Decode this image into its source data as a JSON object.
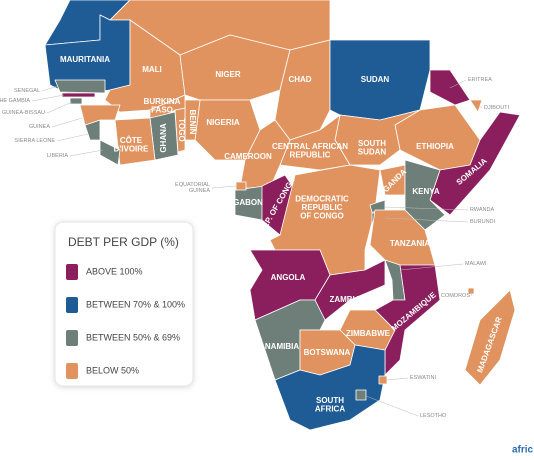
{
  "legend": {
    "title": "DEBT PER GDP (%)",
    "items": [
      {
        "label": "ABOVE 100%",
        "color": "#8b1f5e"
      },
      {
        "label": "BETWEEN 70% & 100%",
        "color": "#1f5b95"
      },
      {
        "label": "BETWEEN 50% & 69%",
        "color": "#6e7f79"
      },
      {
        "label": "BELOW 50%",
        "color": "#e0935f"
      }
    ]
  },
  "countries": [
    {
      "name": [
        "MAURITANIA"
      ],
      "category": 1
    },
    {
      "name": [
        "MALI"
      ],
      "category": 3
    },
    {
      "name": [
        "NIGER"
      ],
      "category": 3
    },
    {
      "name": [
        "CHAD"
      ],
      "category": 3
    },
    {
      "name": [
        "SUDAN"
      ],
      "category": 1
    },
    {
      "name": [
        "ERITREA"
      ],
      "category": 0
    },
    {
      "name": [
        "DJIBOUTI"
      ],
      "category": 3
    },
    {
      "name": [
        "ETHIOPIA"
      ],
      "category": 3
    },
    {
      "name": [
        "SOMALIA"
      ],
      "category": 0
    },
    {
      "name": [
        "SOUTH",
        "SUDAN"
      ],
      "category": 3
    },
    {
      "name": [
        "CENTRAL AFRICAN",
        "REPUBLIC"
      ],
      "category": 3
    },
    {
      "name": [
        "NIGERIA"
      ],
      "category": 3
    },
    {
      "name": [
        "CAMEROON"
      ],
      "category": 3
    },
    {
      "name": [
        "BENIN"
      ],
      "category": 3
    },
    {
      "name": [
        "TOGO"
      ],
      "category": 3
    },
    {
      "name": [
        "BURKINA",
        "FASO"
      ],
      "category": 3
    },
    {
      "name": [
        "GHANA"
      ],
      "category": 2
    },
    {
      "name": [
        "CÔTE",
        "D'IVOIRE"
      ],
      "category": 3
    },
    {
      "name": [
        "LIBERIA"
      ],
      "category": 2
    },
    {
      "name": [
        "SIERRA LEONE"
      ],
      "category": 2
    },
    {
      "name": [
        "GUINEA"
      ],
      "category": 3
    },
    {
      "name": [
        "GUINEA-BISSAU"
      ],
      "category": 2
    },
    {
      "name": [
        "THE GAMBIA"
      ],
      "category": 0
    },
    {
      "name": [
        "SENEGAL"
      ],
      "category": 2
    },
    {
      "name": [
        "GABON"
      ],
      "category": 2
    },
    {
      "name": [
        "REP. OF CONGO"
      ],
      "category": 0
    },
    {
      "name": [
        "EQUATORIAL",
        "GUINEA"
      ],
      "category": 3
    },
    {
      "name": [
        "DEMOCRATIC",
        "REPUBLIC",
        "OF CONGO"
      ],
      "category": 3
    },
    {
      "name": [
        "UGANDA"
      ],
      "category": 3
    },
    {
      "name": [
        "KENYA"
      ],
      "category": 2
    },
    {
      "name": [
        "RWANDA"
      ],
      "category": 2
    },
    {
      "name": [
        "BURUNDI"
      ],
      "category": 2
    },
    {
      "name": [
        "TANZANIA"
      ],
      "category": 3
    },
    {
      "name": [
        "MALAWI"
      ],
      "category": 2
    },
    {
      "name": [
        "COMOROS"
      ],
      "category": 3
    },
    {
      "name": [
        "ANGOLA"
      ],
      "category": 0
    },
    {
      "name": [
        "ZAMBIA"
      ],
      "category": 0
    },
    {
      "name": [
        "MOZAMBIQUE"
      ],
      "category": 0
    },
    {
      "name": [
        "ZIMBABWE"
      ],
      "category": 3
    },
    {
      "name": [
        "NAMIBIA"
      ],
      "category": 2
    },
    {
      "name": [
        "BOTSWANA"
      ],
      "category": 3
    },
    {
      "name": [
        "SOUTH",
        "AFRICA"
      ],
      "category": 1
    },
    {
      "name": [
        "ESWATINI"
      ],
      "category": 3
    },
    {
      "name": [
        "LESOTHO"
      ],
      "category": 2
    },
    {
      "name": [
        "MADAGASCAR"
      ],
      "category": 3
    }
  ],
  "brand": "afric"
}
